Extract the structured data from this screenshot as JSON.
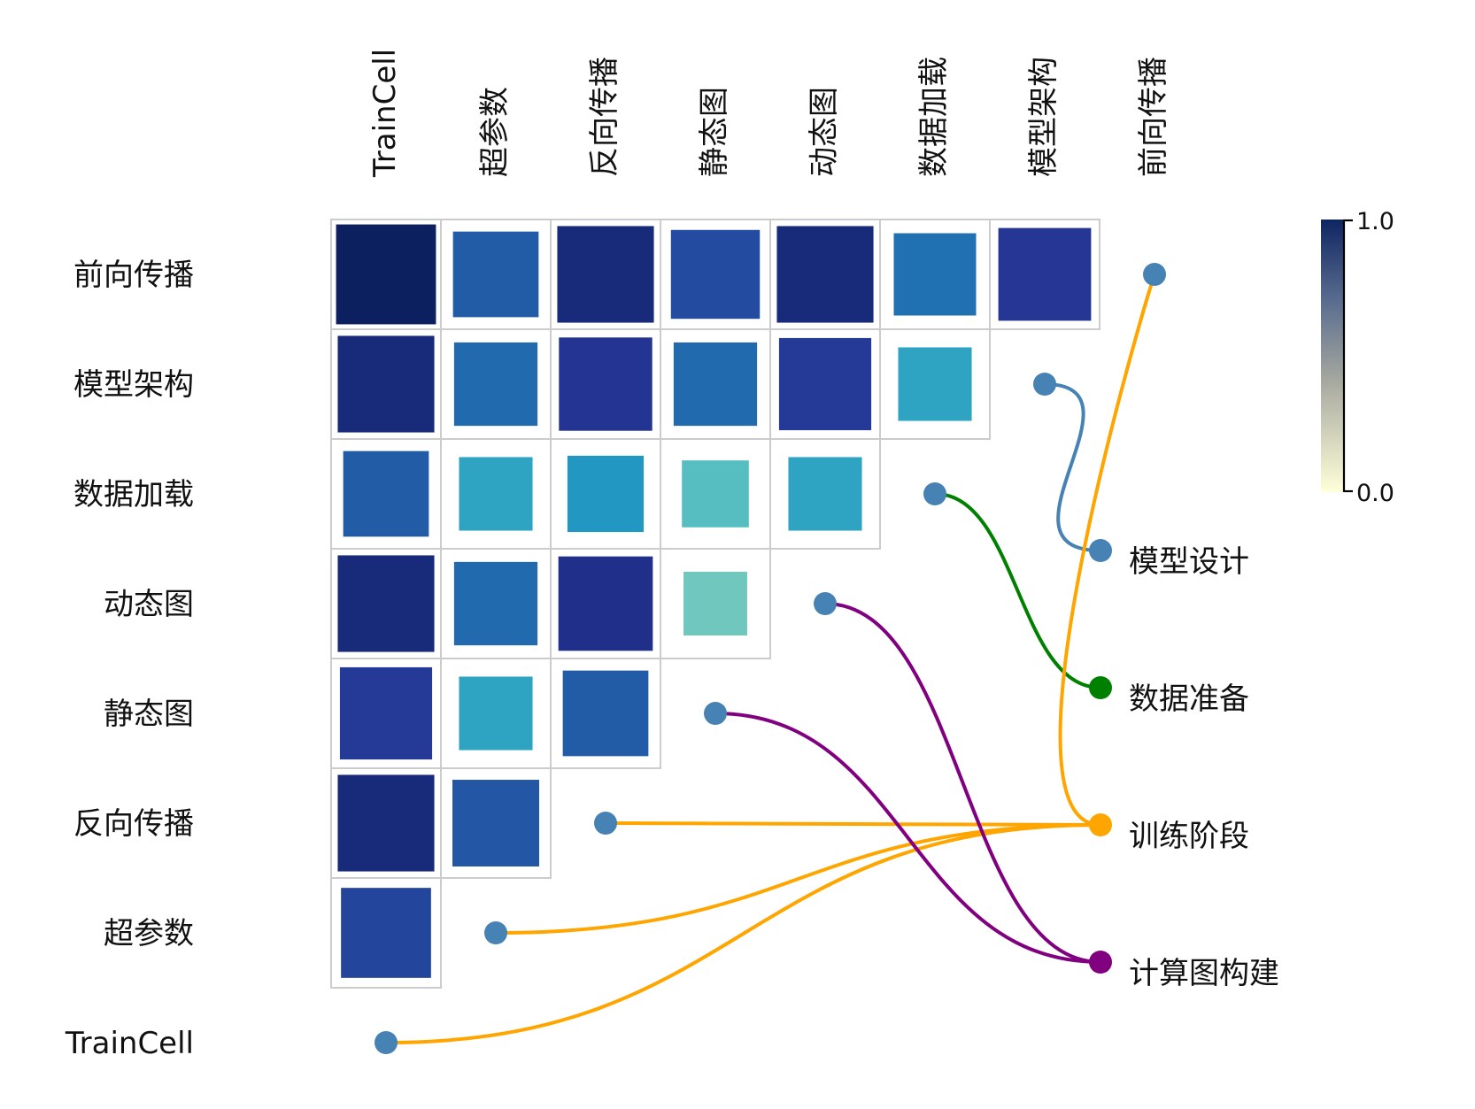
{
  "chart_data": {
    "type": "heatmap",
    "title": "",
    "columns": [
      "TrainCell",
      "超参数",
      "反向传播",
      "静态图",
      "动态图",
      "数据加载",
      "模型架构",
      "前向传播"
    ],
    "rows": [
      "前向传播",
      "模型架构",
      "数据加载",
      "动态图",
      "静态图",
      "反向传播",
      "超参数",
      "TrainCell"
    ],
    "values": [
      [
        0.98,
        0.72,
        0.92,
        0.78,
        0.92,
        0.66,
        0.85
      ],
      [
        0.92,
        0.68,
        0.86,
        0.68,
        0.84,
        0.5
      ],
      [
        0.72,
        0.5,
        0.55,
        0.38,
        0.5
      ],
      [
        0.92,
        0.68,
        0.88,
        0.32
      ],
      [
        0.84,
        0.5,
        0.72
      ],
      [
        0.92,
        0.74
      ],
      [
        0.8
      ],
      []
    ],
    "colorbar": {
      "min": 0.0,
      "max": 1.0,
      "tick_labels": [
        "1.0",
        "0.0"
      ]
    },
    "groups": [
      {
        "label": "模型设计",
        "color": "#4682b4",
        "members": [
          "模型架构"
        ]
      },
      {
        "label": "数据准备",
        "color": "#008000",
        "members": [
          "数据加载"
        ]
      },
      {
        "label": "训练阶段",
        "color": "#ffa500",
        "members": [
          "前向传播",
          "反向传播",
          "超参数",
          "TrainCell"
        ]
      },
      {
        "label": "计算图构建",
        "color": "#800080",
        "members": [
          "动态图",
          "静态图"
        ]
      }
    ],
    "node_color": "#4682b4",
    "colormap": [
      "#ffffd9",
      "#c7e9b4",
      "#7fcdbb",
      "#41b6c4",
      "#1d91c0",
      "#225ea8",
      "#253494",
      "#081d58"
    ]
  }
}
